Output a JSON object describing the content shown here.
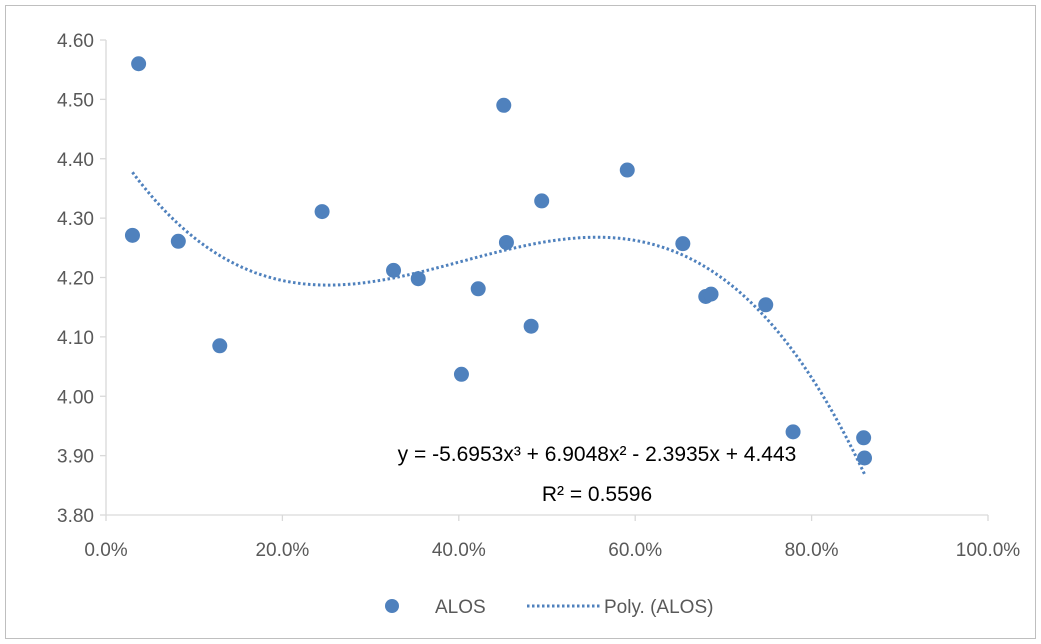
{
  "chart_data": {
    "type": "scatter",
    "title": "",
    "xlabel": "",
    "ylabel": "",
    "xlim": [
      0,
      1
    ],
    "ylim": [
      3.8,
      4.6
    ],
    "x_ticks": [
      0,
      0.2,
      0.4,
      0.6,
      0.8,
      1.0
    ],
    "x_tick_labels": [
      "0.0%",
      "20.0%",
      "40.0%",
      "60.0%",
      "80.0%",
      "100.0%"
    ],
    "y_ticks": [
      3.8,
      3.9,
      4.0,
      4.1,
      4.2,
      4.3,
      4.4,
      4.5,
      4.6
    ],
    "y_tick_labels": [
      "3.80",
      "3.90",
      "4.00",
      "4.10",
      "4.20",
      "4.30",
      "4.40",
      "4.50",
      "4.60"
    ],
    "grid": false,
    "legend_position": "bottom",
    "series": [
      {
        "name": "ALOS",
        "color": "#4f81bd",
        "x": [
          0.03,
          0.037,
          0.082,
          0.129,
          0.245,
          0.326,
          0.354,
          0.403,
          0.422,
          0.451,
          0.454,
          0.482,
          0.494,
          0.591,
          0.654,
          0.68,
          0.686,
          0.748,
          0.779,
          0.859,
          0.86
        ],
        "y": [
          4.271,
          4.56,
          4.261,
          4.085,
          4.311,
          4.212,
          4.198,
          4.037,
          4.181,
          4.49,
          4.259,
          4.118,
          4.329,
          4.381,
          4.257,
          4.168,
          4.172,
          4.154,
          3.94,
          3.93,
          3.896
        ]
      }
    ],
    "trendline": {
      "name": "Poly. (ALOS)",
      "type": "polynomial",
      "order": 3,
      "color": "#4f81bd",
      "coefficients": [
        -5.6953,
        6.9048,
        -2.3935,
        4.443
      ],
      "x_range": [
        0.03,
        0.86
      ],
      "equation_label": "y = -5.6953x³ + 6.9048x² - 2.3935x + 4.443",
      "r2_label": "R² = 0.5596"
    }
  },
  "legend": {
    "marker_label": "ALOS",
    "trend_label": "Poly. (ALOS)"
  }
}
